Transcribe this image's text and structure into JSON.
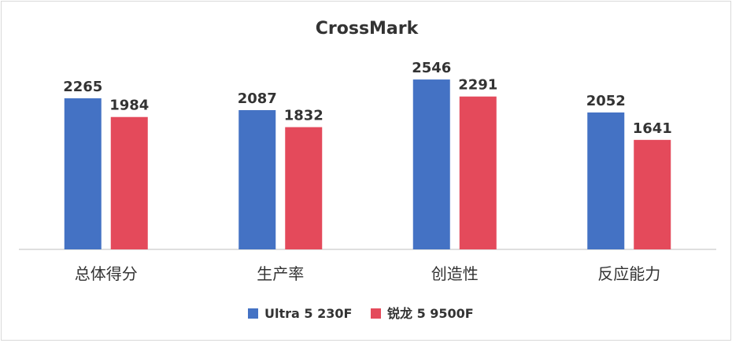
{
  "chart_data": {
    "type": "bar",
    "title": "CrossMark",
    "categories": [
      "总体得分",
      "生产率",
      "创造性",
      "反应能力"
    ],
    "series": [
      {
        "name": "Ultra 5 230F",
        "color": "#4472C4",
        "values": [
          2265,
          2087,
          2546,
          2052
        ]
      },
      {
        "name": "锐龙 5 9500F",
        "color": "#E44A5B",
        "values": [
          1984,
          1832,
          2291,
          1641
        ]
      }
    ],
    "ylim": [
      0,
      2700
    ],
    "grid": false,
    "legend_position": "bottom",
    "data_labels": true
  }
}
